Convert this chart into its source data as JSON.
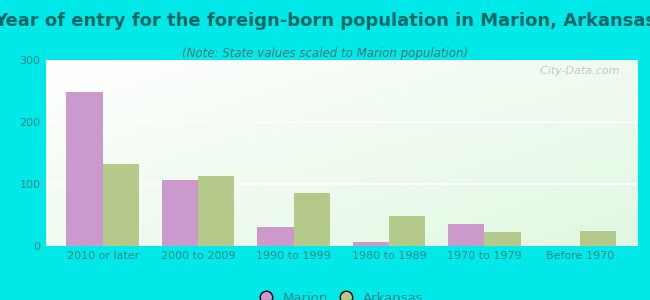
{
  "title": "Year of entry for the foreign-born population in Marion, Arkansas",
  "subtitle": "(Note: State values scaled to Marion population)",
  "categories": [
    "2010 or later",
    "2000 to 2009",
    "1990 to 1999",
    "1980 to 1989",
    "1970 to 1979",
    "Before 1970"
  ],
  "marion_values": [
    248,
    107,
    30,
    7,
    35,
    0
  ],
  "arkansas_values": [
    133,
    113,
    85,
    48,
    22,
    25
  ],
  "marion_color": "#cc99cc",
  "arkansas_color": "#b5c98a",
  "background_outer": "#00e8e8",
  "title_color": "#006666",
  "subtitle_color": "#447777",
  "tick_color": "#228888",
  "ylim": [
    0,
    300
  ],
  "yticks": [
    0,
    100,
    200,
    300
  ],
  "bar_width": 0.38,
  "title_fontsize": 13,
  "subtitle_fontsize": 8.5,
  "tick_fontsize": 8,
  "legend_fontsize": 9.5,
  "watermark": "  City-Data.com"
}
